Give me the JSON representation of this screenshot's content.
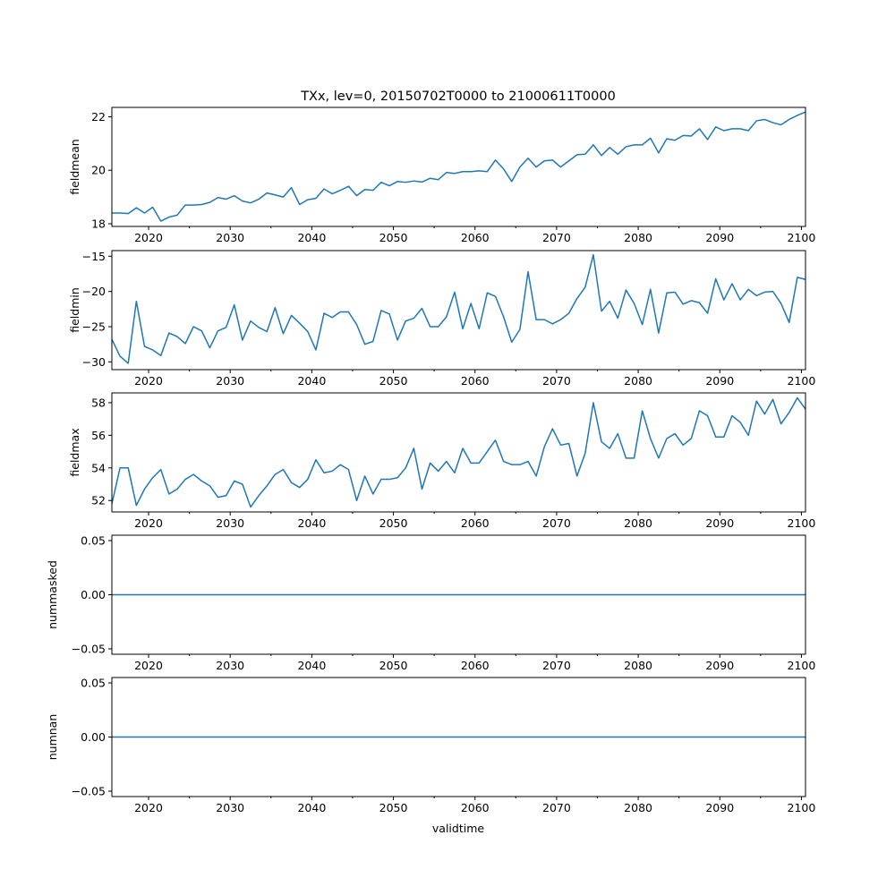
{
  "figure": {
    "title": "TXx, lev=0, 20150702T0000 to 21000611T0000",
    "line_color": "#1f77b4"
  },
  "chart_data": [
    {
      "type": "line",
      "name": "fieldmean",
      "ylabel": "fieldmean",
      "xlabel": "",
      "xlim": [
        2015.5,
        2100.5
      ],
      "ylim": [
        17.9,
        22.35
      ],
      "yticks": [
        18,
        20,
        22
      ],
      "ytick_labels": [
        "18",
        "20",
        "22"
      ],
      "xticks": [
        2020,
        2030,
        2040,
        2050,
        2060,
        2070,
        2080,
        2090,
        2100
      ],
      "xtick_labels": [
        "2020",
        "2030",
        "2040",
        "2050",
        "2060",
        "2070",
        "2080",
        "2090",
        "2100"
      ],
      "x": [
        2015.5,
        2016.5,
        2017.5,
        2018.5,
        2019.5,
        2020.5,
        2021.5,
        2022.5,
        2023.5,
        2024.5,
        2025.5,
        2026.5,
        2027.5,
        2028.5,
        2029.5,
        2030.5,
        2031.5,
        2032.5,
        2033.5,
        2034.5,
        2035.5,
        2036.5,
        2037.5,
        2038.5,
        2039.5,
        2040.5,
        2041.5,
        2042.5,
        2043.5,
        2044.5,
        2045.5,
        2046.5,
        2047.5,
        2048.5,
        2049.5,
        2050.5,
        2051.5,
        2052.5,
        2053.5,
        2054.5,
        2055.5,
        2056.5,
        2057.5,
        2058.5,
        2059.5,
        2060.5,
        2061.5,
        2062.5,
        2063.5,
        2064.5,
        2065.5,
        2066.5,
        2067.5,
        2068.5,
        2069.5,
        2070.5,
        2071.5,
        2072.5,
        2073.5,
        2074.5,
        2075.5,
        2076.5,
        2077.5,
        2078.5,
        2079.5,
        2080.5,
        2081.5,
        2082.5,
        2083.5,
        2084.5,
        2085.5,
        2086.5,
        2087.5,
        2088.5,
        2089.5,
        2090.5,
        2091.5,
        2092.5,
        2093.5,
        2094.5,
        2095.5,
        2096.5,
        2097.5,
        2098.5,
        2099.5,
        2100.5
      ],
      "values": [
        18.4,
        18.4,
        18.38,
        18.6,
        18.4,
        18.62,
        18.1,
        18.25,
        18.32,
        18.7,
        18.7,
        18.72,
        18.8,
        18.98,
        18.92,
        19.05,
        18.85,
        18.78,
        18.92,
        19.15,
        19.08,
        19.0,
        19.35,
        18.72,
        18.9,
        18.95,
        19.3,
        19.12,
        19.25,
        19.4,
        19.05,
        19.28,
        19.25,
        19.55,
        19.42,
        19.58,
        19.55,
        19.6,
        19.56,
        19.7,
        19.65,
        19.92,
        19.88,
        19.95,
        19.95,
        19.98,
        19.95,
        20.38,
        20.05,
        19.58,
        20.12,
        20.45,
        20.12,
        20.35,
        20.38,
        20.12,
        20.35,
        20.58,
        20.6,
        20.95,
        20.55,
        20.85,
        20.6,
        20.88,
        20.95,
        20.95,
        21.2,
        20.65,
        21.18,
        21.12,
        21.3,
        21.28,
        21.55,
        21.15,
        21.62,
        21.48,
        21.55,
        21.55,
        21.48,
        21.85,
        21.9,
        21.78,
        21.7,
        21.9,
        22.05,
        22.18
      ]
    },
    {
      "type": "line",
      "name": "fieldmin",
      "ylabel": "fieldmin",
      "xlabel": "",
      "xlim": [
        2015.5,
        2100.5
      ],
      "ylim": [
        -31.1,
        -14.2
      ],
      "yticks": [
        -30,
        -25,
        -20,
        -15
      ],
      "ytick_labels": [
        "−30",
        "−25",
        "−20",
        "−15"
      ],
      "xticks": [
        2020,
        2030,
        2040,
        2050,
        2060,
        2070,
        2080,
        2090,
        2100
      ],
      "xtick_labels": [
        "2020",
        "2030",
        "2040",
        "2050",
        "2060",
        "2070",
        "2080",
        "2090",
        "2100"
      ],
      "x": [
        2015.5,
        2016.5,
        2017.5,
        2018.5,
        2019.5,
        2020.5,
        2021.5,
        2022.5,
        2023.5,
        2024.5,
        2025.5,
        2026.5,
        2027.5,
        2028.5,
        2029.5,
        2030.5,
        2031.5,
        2032.5,
        2033.5,
        2034.5,
        2035.5,
        2036.5,
        2037.5,
        2038.5,
        2039.5,
        2040.5,
        2041.5,
        2042.5,
        2043.5,
        2044.5,
        2045.5,
        2046.5,
        2047.5,
        2048.5,
        2049.5,
        2050.5,
        2051.5,
        2052.5,
        2053.5,
        2054.5,
        2055.5,
        2056.5,
        2057.5,
        2058.5,
        2059.5,
        2060.5,
        2061.5,
        2062.5,
        2063.5,
        2064.5,
        2065.5,
        2066.5,
        2067.5,
        2068.5,
        2069.5,
        2070.5,
        2071.5,
        2072.5,
        2073.5,
        2074.5,
        2075.5,
        2076.5,
        2077.5,
        2078.5,
        2079.5,
        2080.5,
        2081.5,
        2082.5,
        2083.5,
        2084.5,
        2085.5,
        2086.5,
        2087.5,
        2088.5,
        2089.5,
        2090.5,
        2091.5,
        2092.5,
        2093.5,
        2094.5,
        2095.5,
        2096.5,
        2097.5,
        2098.5,
        2099.5,
        2100.5
      ],
      "values": [
        -26.8,
        -29.2,
        -30.2,
        -21.4,
        -27.8,
        -28.3,
        -29.1,
        -25.9,
        -26.4,
        -27.4,
        -25.0,
        -25.6,
        -28.0,
        -25.6,
        -25.1,
        -21.9,
        -26.9,
        -24.2,
        -25.1,
        -25.7,
        -22.3,
        -26.0,
        -23.4,
        -24.5,
        -25.7,
        -28.3,
        -23.1,
        -23.7,
        -22.9,
        -22.9,
        -24.7,
        -27.5,
        -27.1,
        -22.7,
        -23.2,
        -26.9,
        -24.2,
        -23.8,
        -22.4,
        -25.0,
        -25.0,
        -23.6,
        -20.1,
        -25.3,
        -21.7,
        -25.3,
        -20.2,
        -20.7,
        -23.6,
        -27.2,
        -25.4,
        -17.2,
        -24.0,
        -24.0,
        -24.6,
        -24.0,
        -23.1,
        -21.0,
        -19.4,
        -14.8,
        -22.8,
        -21.4,
        -23.8,
        -19.8,
        -21.7,
        -24.7,
        -19.7,
        -25.9,
        -20.2,
        -20.1,
        -21.8,
        -21.3,
        -21.6,
        -23.1,
        -18.2,
        -21.2,
        -18.9,
        -21.2,
        -19.7,
        -20.6,
        -20.1,
        -20.0,
        -21.7,
        -24.4,
        -18.0,
        -18.3
      ]
    },
    {
      "type": "line",
      "name": "fieldmax",
      "ylabel": "fieldmax",
      "xlabel": "",
      "xlim": [
        2015.5,
        2100.5
      ],
      "ylim": [
        51.3,
        58.6
      ],
      "yticks": [
        52,
        54,
        56,
        58
      ],
      "ytick_labels": [
        "52",
        "54",
        "56",
        "58"
      ],
      "xticks": [
        2020,
        2030,
        2040,
        2050,
        2060,
        2070,
        2080,
        2090,
        2100
      ],
      "xtick_labels": [
        "2020",
        "2030",
        "2040",
        "2050",
        "2060",
        "2070",
        "2080",
        "2090",
        "2100"
      ],
      "x": [
        2015.5,
        2016.5,
        2017.5,
        2018.5,
        2019.5,
        2020.5,
        2021.5,
        2022.5,
        2023.5,
        2024.5,
        2025.5,
        2026.5,
        2027.5,
        2028.5,
        2029.5,
        2030.5,
        2031.5,
        2032.5,
        2033.5,
        2034.5,
        2035.5,
        2036.5,
        2037.5,
        2038.5,
        2039.5,
        2040.5,
        2041.5,
        2042.5,
        2043.5,
        2044.5,
        2045.5,
        2046.5,
        2047.5,
        2048.5,
        2049.5,
        2050.5,
        2051.5,
        2052.5,
        2053.5,
        2054.5,
        2055.5,
        2056.5,
        2057.5,
        2058.5,
        2059.5,
        2060.5,
        2061.5,
        2062.5,
        2063.5,
        2064.5,
        2065.5,
        2066.5,
        2067.5,
        2068.5,
        2069.5,
        2070.5,
        2071.5,
        2072.5,
        2073.5,
        2074.5,
        2075.5,
        2076.5,
        2077.5,
        2078.5,
        2079.5,
        2080.5,
        2081.5,
        2082.5,
        2083.5,
        2084.5,
        2085.5,
        2086.5,
        2087.5,
        2088.5,
        2089.5,
        2090.5,
        2091.5,
        2092.5,
        2093.5,
        2094.5,
        2095.5,
        2096.5,
        2097.5,
        2098.5,
        2099.5,
        2100.5
      ],
      "values": [
        51.8,
        54.0,
        54.0,
        51.7,
        52.7,
        53.4,
        53.9,
        52.4,
        52.7,
        53.3,
        53.6,
        53.2,
        52.9,
        52.2,
        52.3,
        53.2,
        53.0,
        51.6,
        52.3,
        52.9,
        53.6,
        53.9,
        53.1,
        52.8,
        53.3,
        54.5,
        53.7,
        53.8,
        54.2,
        53.9,
        52.0,
        53.5,
        52.4,
        53.3,
        53.3,
        53.4,
        54.0,
        55.2,
        52.7,
        54.3,
        53.8,
        54.4,
        53.7,
        55.2,
        54.3,
        54.3,
        55.0,
        55.7,
        54.4,
        54.2,
        54.2,
        54.4,
        53.5,
        55.3,
        56.4,
        55.4,
        55.5,
        53.5,
        54.9,
        58.0,
        55.6,
        55.2,
        56.1,
        54.6,
        54.6,
        57.5,
        55.8,
        54.6,
        55.8,
        56.1,
        55.4,
        55.8,
        57.5,
        57.2,
        55.9,
        55.9,
        57.2,
        56.8,
        56.0,
        58.1,
        57.3,
        58.2,
        56.7,
        57.4,
        58.3,
        57.6
      ]
    },
    {
      "type": "line",
      "name": "nummasked",
      "ylabel": "nummasked",
      "xlabel": "",
      "xlim": [
        2015.5,
        2100.5
      ],
      "ylim": [
        -0.055,
        0.055
      ],
      "yticks": [
        -0.05,
        0.0,
        0.05
      ],
      "ytick_labels": [
        "−0.05",
        "0.00",
        "0.05"
      ],
      "xticks": [
        2020,
        2030,
        2040,
        2050,
        2060,
        2070,
        2080,
        2090,
        2100
      ],
      "xtick_labels": [
        "2020",
        "2030",
        "2040",
        "2050",
        "2060",
        "2070",
        "2080",
        "2090",
        "2100"
      ],
      "x": [
        2015.5,
        2100.5
      ],
      "values": [
        0,
        0
      ]
    },
    {
      "type": "line",
      "name": "numnan",
      "ylabel": "numnan",
      "xlabel": "validtime",
      "xlim": [
        2015.5,
        2100.5
      ],
      "ylim": [
        -0.055,
        0.055
      ],
      "yticks": [
        -0.05,
        0.0,
        0.05
      ],
      "ytick_labels": [
        "−0.05",
        "0.00",
        "0.05"
      ],
      "xticks": [
        2020,
        2030,
        2040,
        2050,
        2060,
        2070,
        2080,
        2090,
        2100
      ],
      "xtick_labels": [
        "2020",
        "2030",
        "2040",
        "2050",
        "2060",
        "2070",
        "2080",
        "2090",
        "2100"
      ],
      "x": [
        2015.5,
        2100.5
      ],
      "values": [
        0,
        0
      ]
    }
  ]
}
